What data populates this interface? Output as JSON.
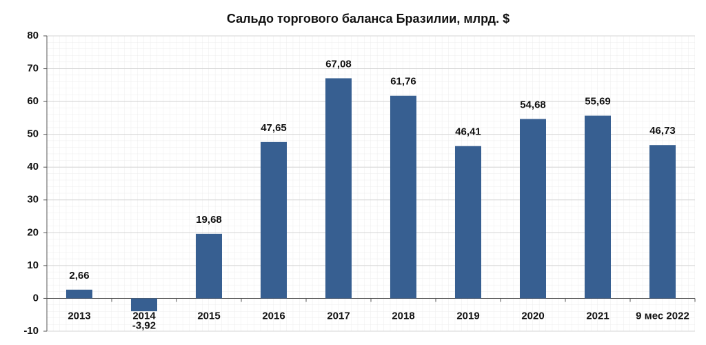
{
  "chart_data": {
    "type": "bar",
    "title": "Сальдо торгового баланса Бразилии, млрд. $",
    "categories": [
      "2013",
      "2014",
      "2015",
      "2016",
      "2017",
      "2018",
      "2019",
      "2020",
      "2021",
      "9 мес 2022"
    ],
    "values": [
      2.66,
      -3.92,
      19.68,
      47.65,
      67.08,
      61.76,
      46.41,
      54.68,
      55.69,
      46.73
    ],
    "value_labels": [
      "2,66",
      "-3,92",
      "19,68",
      "47,65",
      "67,08",
      "61,76",
      "46,41",
      "54,68",
      "55,69",
      "46,73"
    ],
    "color": "#375f91",
    "ylim": [
      -10,
      80
    ],
    "yticks": [
      -10,
      0,
      10,
      20,
      30,
      40,
      50,
      60,
      70,
      80
    ],
    "grid": true
  }
}
